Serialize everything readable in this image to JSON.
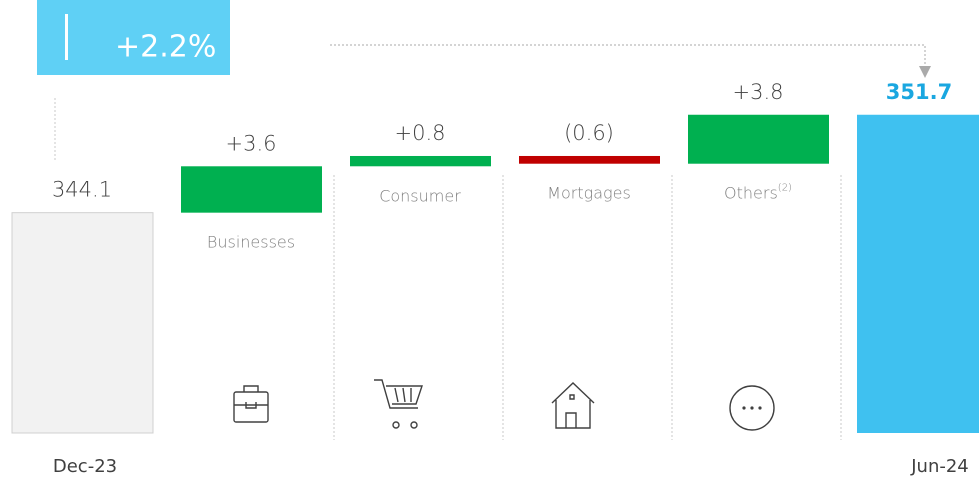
{
  "chart_data": {
    "type": "waterfall",
    "annotation": "+2.2%",
    "categories": [
      "Dec-23",
      "Businesses",
      "Consumer",
      "Mortgages",
      "Others",
      "Jun-24"
    ],
    "others_footnote": "(2)",
    "values": [
      344.1,
      3.6,
      0.8,
      -0.6,
      3.8,
      351.7
    ],
    "value_labels": [
      "344.1",
      "+3.6",
      "+0.8",
      "(0.6)",
      "+3.8",
      "351.7"
    ],
    "start_color": "#f2f2f2",
    "increase_color": "#00b050",
    "decrease_color": "#c00000",
    "end_color": "#3fc1f0",
    "ylim": [
      327,
      353
    ]
  }
}
